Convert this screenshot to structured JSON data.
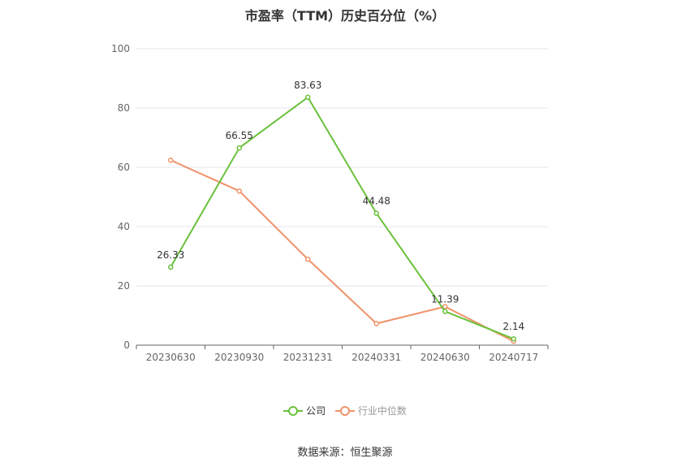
{
  "title": "市盈率（TTM）历史百分位（%）",
  "source": "数据来源：恒生聚源",
  "colors": {
    "company": "#6ac13a",
    "industry": "#f0926a",
    "grid": "#e6e6ee",
    "axis": "#666666"
  },
  "chart_data": {
    "type": "line",
    "title": "市盈率（TTM）历史百分位（%）",
    "categories": [
      "20230630",
      "20230930",
      "20231231",
      "20240331",
      "20240630",
      "20240717"
    ],
    "ylim": [
      0,
      100
    ],
    "yticks": [
      0,
      20,
      40,
      60,
      80,
      100
    ],
    "grid": true,
    "legend_position": "bottom",
    "series": [
      {
        "name": "公司",
        "color": "#6ac13a",
        "values": [
          26.33,
          66.55,
          83.63,
          44.48,
          11.39,
          2.14
        ],
        "labels": [
          "26.33",
          "66.55",
          "83.63",
          "44.48",
          "11.39",
          "2.14"
        ]
      },
      {
        "name": "行业中位数",
        "color": "#f0926a",
        "values": [
          62.4,
          52.0,
          29.0,
          7.3,
          13.0,
          1.3
        ]
      }
    ]
  }
}
